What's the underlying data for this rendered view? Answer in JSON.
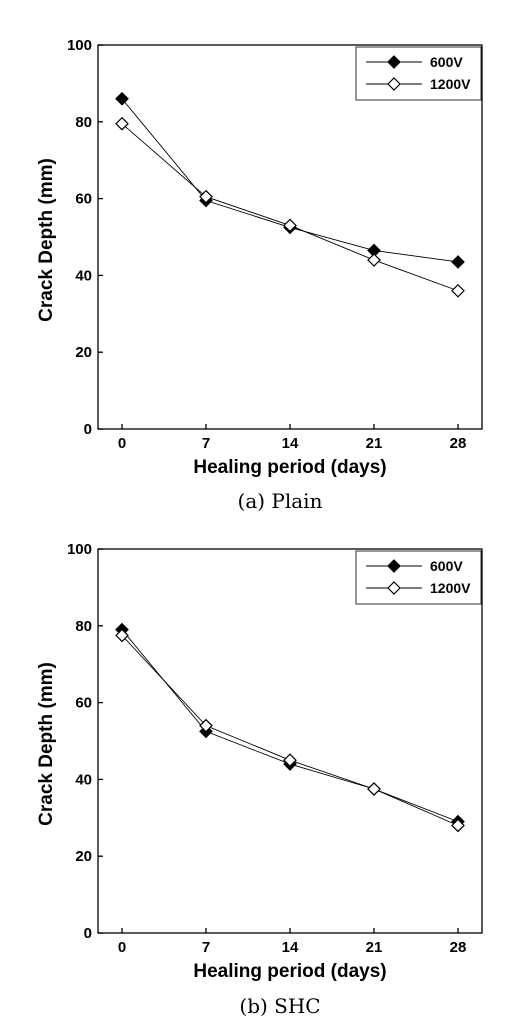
{
  "chart_data": [
    {
      "type": "line",
      "caption": "(a) Plain",
      "xlabel": "Healing period (days)",
      "ylabel": "Crack Depth (mm)",
      "x": [
        0,
        7,
        14,
        21,
        28
      ],
      "x_ticks": [
        "0",
        "7",
        "14",
        "21",
        "28"
      ],
      "xlim": [
        -2,
        30
      ],
      "ylim": [
        0,
        100
      ],
      "y_ticks": [
        "0",
        "20",
        "40",
        "60",
        "80",
        "100"
      ],
      "grid": false,
      "legend_position": "top-right",
      "series": [
        {
          "name": "600V",
          "marker": "filled-diamond",
          "values": [
            86,
            59.5,
            52.5,
            46.5,
            43.5
          ]
        },
        {
          "name": "1200V",
          "marker": "open-diamond",
          "values": [
            79.5,
            60.5,
            53,
            44,
            36
          ]
        }
      ]
    },
    {
      "type": "line",
      "caption": "(b) SHC",
      "xlabel": "Healing period (days)",
      "ylabel": "Crack Depth (mm)",
      "x": [
        0,
        7,
        14,
        21,
        28
      ],
      "x_ticks": [
        "0",
        "7",
        "14",
        "21",
        "28"
      ],
      "xlim": [
        -2,
        30
      ],
      "ylim": [
        0,
        100
      ],
      "y_ticks": [
        "0",
        "20",
        "40",
        "60",
        "80",
        "100"
      ],
      "grid": false,
      "legend_position": "top-right",
      "series": [
        {
          "name": "600V",
          "marker": "filled-diamond",
          "values": [
            79,
            52.5,
            44,
            37.5,
            29
          ]
        },
        {
          "name": "1200V",
          "marker": "open-diamond",
          "values": [
            77.5,
            54,
            45,
            37.5,
            28
          ]
        }
      ]
    }
  ]
}
